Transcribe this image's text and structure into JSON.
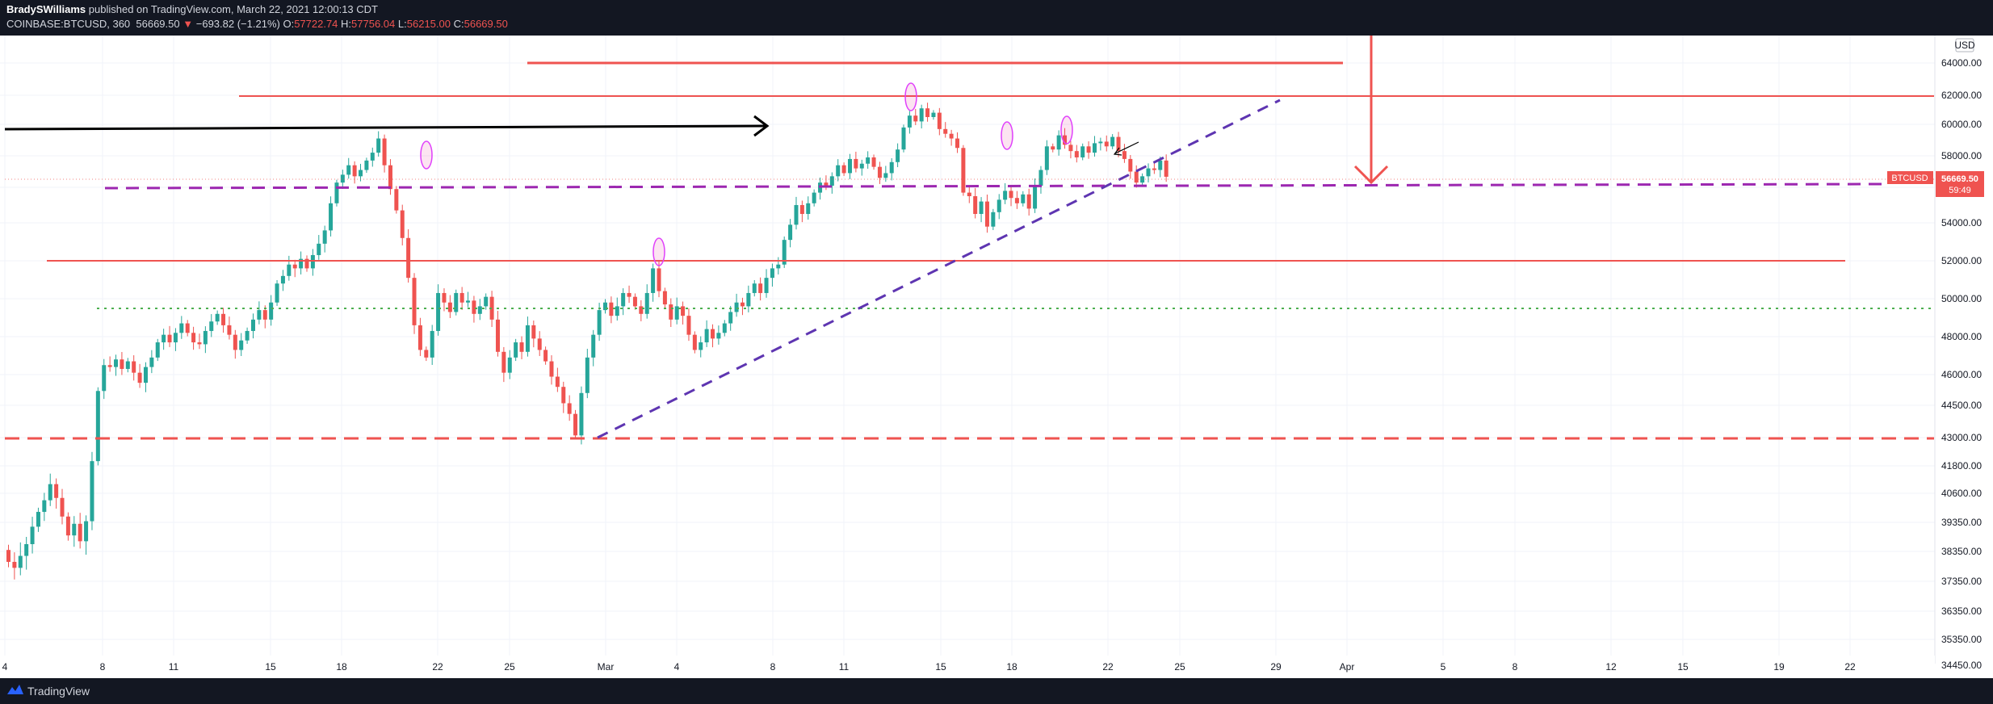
{
  "header": {
    "author": "BradySWilliams",
    "published": "published on TradingView.com, March 22, 2021 12:00:13 CDT",
    "symbol": "COINBASE:BTCUSD, 360",
    "last": "56669.50",
    "change": "−693.82 (−1.21%)",
    "o_label": "O:",
    "o": "57722.74",
    "h_label": "H:",
    "h": "57756.04",
    "l_label": "L:",
    "l": "56215.00",
    "c_label": "C:",
    "c": "56669.50"
  },
  "footer": {
    "brand": "TradingView"
  },
  "colors": {
    "up": "#26a69a",
    "down": "#ef5350",
    "level": "#ef5350",
    "purple": "#9c27b0",
    "trend": "#5e35b1",
    "green_dot": "#4caf50",
    "black_arrow": "#000000",
    "background": "#ffffff",
    "chrome": "#131722"
  },
  "chart_data": {
    "type": "candlestick",
    "currency_label": "USD",
    "price_tag": {
      "symbol": "BTCUSD",
      "value": "56669.50",
      "countdown": "59:49"
    },
    "y_ticks": [
      "64000.00",
      "62000.00",
      "60000.00",
      "58000.00",
      "56000.00",
      "54000.00",
      "52000.00",
      "50000.00",
      "48000.00",
      "46000.00",
      "44500.00",
      "43000.00",
      "41800.00",
      "40600.00",
      "39350.00",
      "38350.00",
      "37350.00",
      "36350.00",
      "35350.00",
      "34450.00"
    ],
    "x_ticks": [
      "4",
      "8",
      "11",
      "15",
      "18",
      "22",
      "25",
      "Mar",
      "4",
      "8",
      "11",
      "15",
      "18",
      "22",
      "25",
      "29",
      "Apr",
      "5",
      "8",
      "12",
      "15",
      "19",
      "22"
    ],
    "closes": [
      38000,
      37800,
      38200,
      38600,
      39200,
      39800,
      40300,
      41000,
      40400,
      39600,
      38900,
      39300,
      38700,
      39400,
      42000,
      45200,
      46500,
      46400,
      46800,
      46300,
      46700,
      46100,
      45600,
      46400,
      46900,
      47700,
      48100,
      47700,
      48200,
      48700,
      48200,
      47700,
      47600,
      48300,
      48800,
      49200,
      48600,
      48100,
      47300,
      47800,
      48300,
      48900,
      49400,
      48900,
      49800,
      50800,
      51200,
      51800,
      51600,
      52100,
      51600,
      52300,
      52900,
      53600,
      55100,
      56300,
      56800,
      57400,
      56700,
      57100,
      57700,
      58200,
      59100,
      57400,
      55900,
      54700,
      53200,
      51100,
      48600,
      47300,
      46900,
      48300,
      50300,
      49800,
      49300,
      50300,
      49800,
      49900,
      49200,
      49600,
      50100,
      48900,
      47200,
      46100,
      46900,
      47700,
      47200,
      48600,
      47900,
      47300,
      46700,
      45900,
      45400,
      44600,
      44100,
      43100,
      45100,
      46900,
      48100,
      49400,
      49800,
      49100,
      49600,
      50300,
      50100,
      49600,
      49200,
      50300,
      51600,
      50400,
      49700,
      48900,
      49600,
      49100,
      48100,
      47300,
      47700,
      48400,
      47900,
      48200,
      48700,
      49300,
      49800,
      49600,
      50300,
      50800,
      50300,
      51100,
      51600,
      51800,
      53100,
      53900,
      55000,
      54500,
      55100,
      55700,
      56300,
      56100,
      56700,
      57400,
      56900,
      57800,
      57200,
      57500,
      57900,
      57300,
      56600,
      56900,
      57600,
      58400,
      59800,
      60600,
      60200,
      61100,
      60500,
      60800,
      59700,
      59400,
      59100,
      58500,
      55700,
      55500,
      54500,
      55200,
      53800,
      54600,
      55300,
      55800,
      55400,
      55100,
      55600,
      54800,
      56100,
      57100,
      58600,
      58400,
      59300,
      58700,
      58300,
      57900,
      58600,
      58200,
      58800,
      58900,
      58600,
      59200,
      58300,
      57800,
      57000,
      56300,
      56700,
      57200,
      57100,
      57700,
      56670
    ]
  }
}
